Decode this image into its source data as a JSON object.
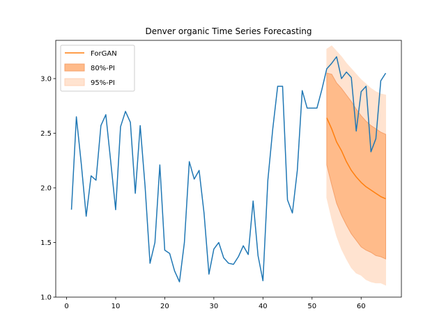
{
  "chart_data": {
    "type": "line",
    "title": "Denver organic Time Series Forecasting",
    "xlabel": "",
    "ylabel": "",
    "xlim": [
      -2.2,
      68.2
    ],
    "ylim": [
      1.0,
      3.35
    ],
    "xticks": [
      0,
      10,
      20,
      30,
      40,
      50,
      60
    ],
    "yticks": [
      1.0,
      1.5,
      2.0,
      2.5,
      3.0
    ],
    "grid": false,
    "legend_position": "top-left",
    "colors": {
      "actual": "#1f77b4",
      "forecast": "#ff7f0e",
      "pi80": "#ffbb8a",
      "pi95": "#ffe3d0"
    },
    "legend": [
      {
        "label": "ForGAN",
        "kind": "line",
        "series": "forecast"
      },
      {
        "label": "80%-PI",
        "kind": "band",
        "series": "pi80"
      },
      {
        "label": "95%-PI",
        "kind": "band",
        "series": "pi95"
      }
    ],
    "actual": {
      "x": [
        1,
        2,
        3,
        4,
        5,
        6,
        7,
        8,
        9,
        10,
        11,
        12,
        13,
        14,
        15,
        16,
        17,
        18,
        19,
        20,
        21,
        22,
        23,
        24,
        25,
        26,
        27,
        28,
        29,
        30,
        31,
        32,
        33,
        34,
        35,
        36,
        37,
        38,
        39,
        40,
        41,
        42,
        43,
        44,
        45,
        46,
        47,
        48,
        49,
        50,
        51,
        52,
        53,
        54,
        55,
        56,
        57,
        58,
        59,
        60,
        61,
        62,
        63,
        64,
        65
      ],
      "y": [
        1.8,
        2.65,
        2.22,
        1.74,
        2.11,
        2.07,
        2.57,
        2.67,
        2.24,
        1.8,
        2.56,
        2.7,
        2.6,
        1.95,
        2.57,
        2.01,
        1.31,
        1.5,
        2.21,
        1.43,
        1.4,
        1.24,
        1.14,
        1.5,
        2.24,
        2.08,
        2.16,
        1.77,
        1.21,
        1.44,
        1.5,
        1.36,
        1.31,
        1.3,
        1.37,
        1.47,
        1.39,
        1.88,
        1.38,
        1.15,
        2.07,
        2.54,
        2.93,
        2.93,
        1.89,
        1.77,
        2.16,
        2.89,
        2.73,
        2.73,
        2.73,
        2.9,
        3.09,
        3.14,
        3.2,
        3.0,
        3.06,
        3.01,
        2.52,
        2.88,
        2.93,
        2.33,
        2.45,
        2.98,
        3.05
      ]
    },
    "forecast": {
      "x": [
        53,
        54,
        55,
        56,
        57,
        58,
        59,
        60,
        61,
        62,
        63,
        64,
        65
      ],
      "median": [
        2.64,
        2.54,
        2.42,
        2.34,
        2.24,
        2.16,
        2.1,
        2.05,
        2.01,
        1.98,
        1.95,
        1.92,
        1.9
      ],
      "pi80_upper": [
        3.05,
        3.04,
        2.96,
        2.91,
        2.85,
        2.79,
        2.72,
        2.66,
        2.61,
        2.57,
        2.54,
        2.51,
        2.49
      ],
      "pi80_lower": [
        2.21,
        2.03,
        1.86,
        1.75,
        1.66,
        1.58,
        1.52,
        1.46,
        1.43,
        1.41,
        1.38,
        1.37,
        1.35
      ],
      "pi95_upper": [
        3.27,
        3.3,
        3.25,
        3.2,
        3.14,
        3.09,
        3.04,
        2.99,
        2.95,
        2.91,
        2.88,
        2.86,
        2.85
      ],
      "pi95_lower": [
        1.91,
        1.72,
        1.56,
        1.44,
        1.35,
        1.27,
        1.22,
        1.2,
        1.16,
        1.14,
        1.13,
        1.13,
        1.11
      ]
    }
  }
}
